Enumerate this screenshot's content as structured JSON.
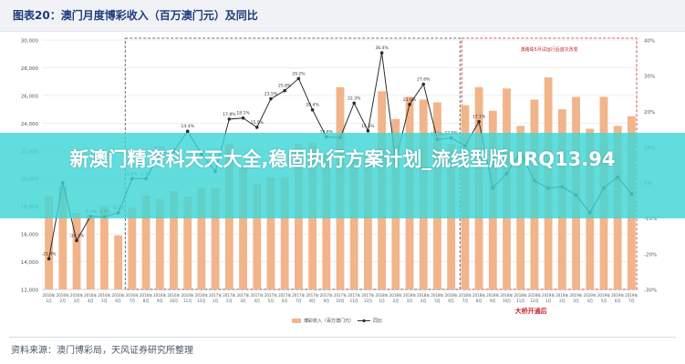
{
  "header": {
    "title": "图表20：澳门月度博彩收入（百万澳门元）及同比"
  },
  "overlay": {
    "headline": "新澳门精资科天天大全,稳固执行方案计划_流线型版URQ13.94"
  },
  "footer": {
    "source": "资料来源：澳门博彩局，天风证券研究所整理"
  },
  "chart_data": {
    "type": "bar",
    "title": "澳门月度博彩收入（百万澳门元）及同比",
    "categories": [
      "2016年1月",
      "2016年2月",
      "2016年3月",
      "2016年4月",
      "2016年5月",
      "2016年6月",
      "2016年7月",
      "2016年8月",
      "2016年9月",
      "2016年10月",
      "2016年11月",
      "2016年12月",
      "2017年1月",
      "2017年2月",
      "2017年3月",
      "2017年4月",
      "2017年5月",
      "2017年6月",
      "2017年7月",
      "2017年8月",
      "2017年9月",
      "2017年10月",
      "2017年11月",
      "2017年12月",
      "2018年1月",
      "2018年2月",
      "2018年3月",
      "2018年4月",
      "2018年5月",
      "2018年6月",
      "2018年7月",
      "2018年8月",
      "2018年9月",
      "2018年10月",
      "2018年11月",
      "2018年12月",
      "2019年1月",
      "2019年2月",
      "2019年3月",
      "2019年4月",
      "2019年5月",
      "2019年6月",
      "2019年7月"
    ],
    "month_labels": [
      "1月",
      "2月",
      "3月",
      "4月",
      "5月",
      "6月",
      "7月",
      "8月",
      "9月",
      "10月",
      "11月",
      "12月",
      "1月",
      "2月",
      "3月",
      "4月",
      "5月",
      "6月",
      "7月",
      "8月",
      "9月",
      "10月",
      "11月",
      "12月",
      "1月",
      "2月",
      "3月",
      "4月",
      "5月",
      "6月",
      "7月",
      "8月",
      "9月",
      "10月",
      "11月",
      "12月",
      "1月",
      "2月",
      "3月",
      "4月",
      "5月",
      "6月",
      "7月"
    ],
    "year_labels": [
      "2016年",
      "2016年",
      "2016年",
      "2016年",
      "2016年",
      "2016年",
      "2016年",
      "2016年",
      "2016年",
      "2016年",
      "2016年",
      "2016年",
      "2017年",
      "2017年",
      "2017年",
      "2017年",
      "2017年",
      "2017年",
      "2017年",
      "2017年",
      "2017年",
      "2017年",
      "2017年",
      "2017年",
      "2018年",
      "2018年",
      "2018年",
      "2018年",
      "2018年",
      "2018年",
      "2018年",
      "2018年",
      "2018年",
      "2018年",
      "2018年",
      "2018年",
      "2019年",
      "2019年",
      "2019年",
      "2019年",
      "2019年",
      "2019年",
      "2019年"
    ],
    "series": [
      {
        "name": "博彩收入（百万澳门元）",
        "kind": "bar",
        "color": "#f2b48a",
        "values": [
          18700,
          19500,
          17500,
          17400,
          18000,
          15900,
          17900,
          18800,
          18500,
          19100,
          18700,
          19300,
          19300,
          22500,
          20800,
          19600,
          20100,
          20100,
          22500,
          22600,
          21700,
          26600,
          21600,
          21800,
          26300,
          24300,
          25900,
          25700,
          25500,
          22500,
          25300,
          26600,
          24900,
          26500,
          23800,
          25700,
          27300,
          25000,
          25900,
          23600,
          25900,
          23800,
          24500
        ]
      },
      {
        "name": "同比",
        "kind": "line",
        "axis": "right",
        "color": "#2d2d2d",
        "values": [
          -21.4,
          -0.1,
          -16.3,
          -9.5,
          -9.6,
          -8.5,
          1.1,
          1.1,
          8.2,
          8.8,
          14.4,
          8.0,
          3.1,
          17.8,
          18.1,
          15.5,
          23.5,
          25.8,
          29.2,
          20.4,
          12.8,
          12.6,
          22.3,
          14.5,
          36.4,
          6.1,
          21.9,
          27.6,
          12.1,
          12.5,
          10.3,
          17.1,
          -1.5,
          2.5,
          8.5,
          0.5,
          -1.6,
          -1.2,
          -3.5,
          -8.5,
          -1.5,
          1.5,
          -3.2
        ]
      }
    ],
    "value_labels": [
      "-21.4%",
      "",
      "-16.3%",
      "-9.5%",
      "-9.6%",
      "-8.5%",
      "1.1%",
      "1.1%",
      "8.2%",
      "",
      "14.4%",
      "",
      "",
      "17.8%",
      "18.1%",
      "15.5%",
      "23.5%",
      "25.8%",
      "29.2%",
      "20.4%",
      "12.8%",
      "",
      "22.3%",
      "14.5%",
      "36.4%",
      "",
      "21.9%",
      "27.6%",
      "12.1%",
      "12.5%",
      "",
      "17.1%",
      "",
      "",
      "",
      "",
      "",
      "",
      "",
      "",
      "",
      "",
      ""
    ],
    "y_left": {
      "min": 12000,
      "max": 30000,
      "ticks": [
        "12,000",
        "14,000",
        "16,000",
        "18,000",
        "20,000",
        "22,000",
        "24,000",
        "26,000",
        "28,000",
        "30,000"
      ]
    },
    "y_right": {
      "min": -30,
      "max": 40,
      "ticks": [
        "-30%",
        "-20%",
        "-10%",
        "0%",
        "10%",
        "20%",
        "30%",
        "40%"
      ]
    },
    "legend": {
      "placement": "bottom-center"
    },
    "annotations": {
      "dashed_region_label": "澳路珠5月试运行后首次改变",
      "bridge_label": "大桥开通后"
    },
    "colors": {
      "bar": "#f2b48a",
      "line": "#2d2d2d",
      "bridge_accent": "#c62828"
    },
    "grid": true
  }
}
